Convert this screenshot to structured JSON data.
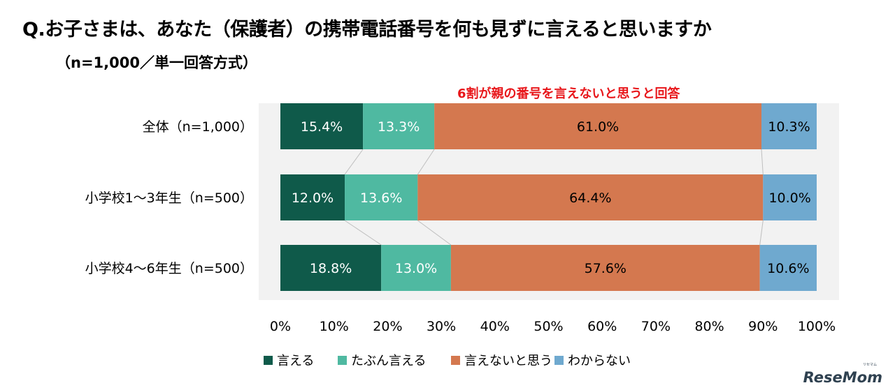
{
  "title": "Q.お子さまは、あなた（保護者）の携帯電話番号を何も見ずに言えると思いますか",
  "subtitle": "（n=1,000／単一回答方式）",
  "annotation": "6割が親の番号を言えないと思うと回答",
  "logo": "ReseMom",
  "logo_kana": "リセマム",
  "chart_data": {
    "type": "bar",
    "orientation": "horizontal",
    "stacked": true,
    "normalized": true,
    "categories": [
      "全体（n=1,000）",
      "小学校1〜3年生（n=500）",
      "小学校4〜6年生（n=500）"
    ],
    "series": [
      {
        "name": "言える",
        "color": "#0f5a4a",
        "values": [
          15.4,
          12.0,
          18.8
        ]
      },
      {
        "name": "たぶん言える",
        "color": "#4fb9a1",
        "values": [
          13.3,
          13.6,
          13.0
        ]
      },
      {
        "name": "言えないと思う",
        "color": "#d4784f",
        "values": [
          61.0,
          64.4,
          57.6
        ]
      },
      {
        "name": "わからない",
        "color": "#6fa9cf",
        "values": [
          10.3,
          10.0,
          10.6
        ]
      }
    ],
    "xlim": [
      0,
      100
    ],
    "x_ticks": [
      "0%",
      "10%",
      "20%",
      "30%",
      "40%",
      "50%",
      "60%",
      "70%",
      "80%",
      "90%",
      "100%"
    ],
    "legend_position": "bottom",
    "connector_lines": true,
    "grid": false
  }
}
